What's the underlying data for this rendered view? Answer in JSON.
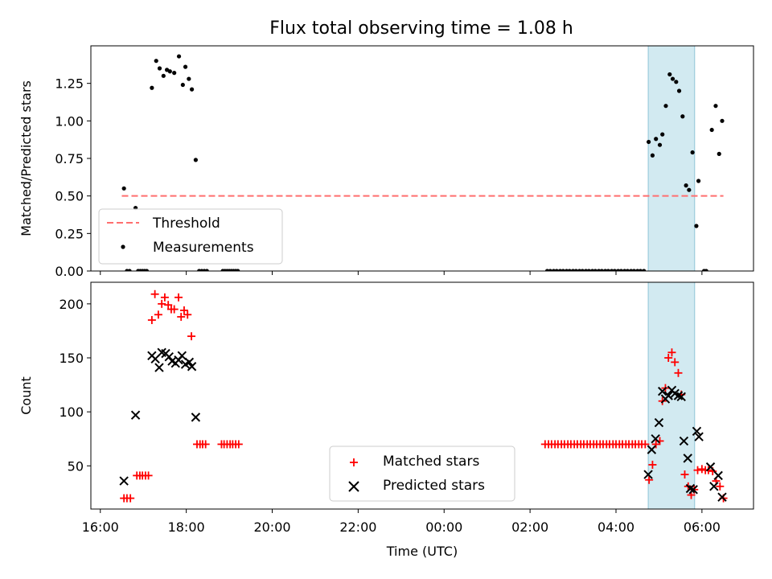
{
  "title": "Flux total observing time = 1.08 h",
  "colors": {
    "measure": "#000000",
    "threshold": "#ff6f6f",
    "matched": "#ff0000",
    "predicted": "#000000",
    "highlight": "#add8e6"
  },
  "chart_data": [
    {
      "type": "scatter",
      "ylabel": "Matched/Predicted stars",
      "ylim": [
        0,
        1.5
      ],
      "yticks": [
        "0.00",
        "0.25",
        "0.50",
        "0.75",
        "1.00",
        "1.25"
      ],
      "ytick_values": [
        0,
        0.25,
        0.5,
        0.75,
        1.0,
        1.25
      ],
      "xlim": [
        15.78,
        31.2
      ],
      "xtick_values": [
        16,
        18,
        20,
        22,
        24,
        26,
        28,
        30
      ],
      "highlight_span": [
        28.75,
        29.83
      ],
      "legend_position": "lower-left",
      "threshold": {
        "name": "Threshold",
        "y": 0.5,
        "x_range": [
          16.5,
          30.5
        ]
      },
      "series": [
        {
          "name": "Measurements",
          "points": [
            [
              16.55,
              0.55
            ],
            [
              16.82,
              0.42
            ],
            [
              17.2,
              1.22
            ],
            [
              17.3,
              1.4
            ],
            [
              17.38,
              1.35
            ],
            [
              17.47,
              1.3
            ],
            [
              17.55,
              1.34
            ],
            [
              17.62,
              1.33
            ],
            [
              17.72,
              1.32
            ],
            [
              17.83,
              1.43
            ],
            [
              17.92,
              1.24
            ],
            [
              17.98,
              1.36
            ],
            [
              18.06,
              1.28
            ],
            [
              18.13,
              1.21
            ],
            [
              18.22,
              0.74
            ],
            [
              16.62,
              0
            ],
            [
              16.68,
              0
            ],
            [
              16.88,
              0
            ],
            [
              16.93,
              0
            ],
            [
              16.98,
              0
            ],
            [
              17.03,
              0
            ],
            [
              17.08,
              0
            ],
            [
              18.3,
              0
            ],
            [
              18.36,
              0
            ],
            [
              18.42,
              0
            ],
            [
              18.48,
              0
            ],
            [
              18.85,
              0
            ],
            [
              18.9,
              0
            ],
            [
              18.95,
              0
            ],
            [
              19.0,
              0
            ],
            [
              19.05,
              0
            ],
            [
              19.1,
              0
            ],
            [
              19.15,
              0
            ],
            [
              19.2,
              0
            ],
            [
              28.76,
              0.86
            ],
            [
              28.85,
              0.77
            ],
            [
              28.93,
              0.88
            ],
            [
              29.02,
              0.84
            ],
            [
              29.08,
              0.91
            ],
            [
              29.16,
              1.1
            ],
            [
              29.25,
              1.31
            ],
            [
              29.32,
              1.28
            ],
            [
              29.4,
              1.26
            ],
            [
              29.47,
              1.2
            ],
            [
              29.55,
              1.03
            ],
            [
              29.63,
              0.57
            ],
            [
              29.7,
              0.54
            ],
            [
              29.78,
              0.79
            ],
            [
              29.87,
              0.3
            ],
            [
              29.92,
              0.6
            ],
            [
              30.05,
              0
            ],
            [
              30.1,
              0
            ],
            [
              30.23,
              0.94
            ],
            [
              30.32,
              1.1
            ],
            [
              30.4,
              0.78
            ],
            [
              30.47,
              1.0
            ],
            [
              26.4,
              0
            ],
            [
              26.47,
              0
            ],
            [
              26.55,
              0
            ],
            [
              26.62,
              0
            ],
            [
              26.7,
              0
            ],
            [
              26.77,
              0
            ],
            [
              26.85,
              0
            ],
            [
              26.92,
              0
            ],
            [
              27.0,
              0
            ],
            [
              27.07,
              0
            ],
            [
              27.15,
              0
            ],
            [
              27.22,
              0
            ],
            [
              27.3,
              0
            ],
            [
              27.37,
              0
            ],
            [
              27.45,
              0
            ],
            [
              27.52,
              0
            ],
            [
              27.6,
              0
            ],
            [
              27.67,
              0
            ],
            [
              27.75,
              0
            ],
            [
              27.82,
              0
            ],
            [
              27.9,
              0
            ],
            [
              27.97,
              0
            ],
            [
              28.05,
              0
            ],
            [
              28.12,
              0
            ],
            [
              28.2,
              0
            ],
            [
              28.27,
              0
            ],
            [
              28.35,
              0
            ],
            [
              28.42,
              0
            ],
            [
              28.5,
              0
            ],
            [
              28.57,
              0
            ],
            [
              28.65,
              0
            ]
          ]
        }
      ]
    },
    {
      "type": "scatter",
      "ylabel": "Count",
      "xlabel": "Time (UTC)",
      "ylim": [
        10,
        220
      ],
      "yticks": [
        "50",
        "100",
        "150",
        "200"
      ],
      "ytick_values": [
        50,
        100,
        150,
        200
      ],
      "xlim": [
        15.78,
        31.2
      ],
      "xticks": [
        "16:00",
        "18:00",
        "20:00",
        "22:00",
        "00:00",
        "02:00",
        "04:00",
        "06:00"
      ],
      "xtick_values": [
        16,
        18,
        20,
        22,
        24,
        26,
        28,
        30
      ],
      "highlight_span": [
        28.75,
        29.83
      ],
      "legend_position": "lower-center",
      "series": [
        {
          "name": "Matched stars",
          "marker": "+",
          "points": [
            [
              16.55,
              20
            ],
            [
              16.62,
              20
            ],
            [
              16.7,
              20
            ],
            [
              16.85,
              41
            ],
            [
              16.92,
              41
            ],
            [
              16.98,
              41
            ],
            [
              17.05,
              41
            ],
            [
              17.12,
              41
            ],
            [
              17.2,
              185
            ],
            [
              17.27,
              209
            ],
            [
              17.35,
              190
            ],
            [
              17.43,
              200
            ],
            [
              17.5,
              206
            ],
            [
              17.58,
              199
            ],
            [
              17.65,
              195
            ],
            [
              17.72,
              195
            ],
            [
              17.82,
              206
            ],
            [
              17.88,
              188
            ],
            [
              17.95,
              194
            ],
            [
              18.03,
              190
            ],
            [
              18.12,
              170
            ],
            [
              18.25,
              70
            ],
            [
              18.32,
              70
            ],
            [
              18.38,
              70
            ],
            [
              18.45,
              70
            ],
            [
              18.82,
              70
            ],
            [
              18.88,
              70
            ],
            [
              18.95,
              70
            ],
            [
              19.02,
              70
            ],
            [
              19.08,
              70
            ],
            [
              19.15,
              70
            ],
            [
              19.22,
              70
            ],
            [
              26.35,
              70
            ],
            [
              26.43,
              70
            ],
            [
              26.5,
              70
            ],
            [
              26.58,
              70
            ],
            [
              26.65,
              70
            ],
            [
              26.73,
              70
            ],
            [
              26.8,
              70
            ],
            [
              26.88,
              70
            ],
            [
              26.95,
              70
            ],
            [
              27.03,
              70
            ],
            [
              27.1,
              70
            ],
            [
              27.18,
              70
            ],
            [
              27.25,
              70
            ],
            [
              27.33,
              70
            ],
            [
              27.4,
              70
            ],
            [
              27.48,
              70
            ],
            [
              27.55,
              70
            ],
            [
              27.63,
              70
            ],
            [
              27.7,
              70
            ],
            [
              27.78,
              70
            ],
            [
              27.85,
              70
            ],
            [
              27.93,
              70
            ],
            [
              28.0,
              70
            ],
            [
              28.08,
              70
            ],
            [
              28.15,
              70
            ],
            [
              28.23,
              70
            ],
            [
              28.3,
              70
            ],
            [
              28.38,
              70
            ],
            [
              28.45,
              70
            ],
            [
              28.53,
              70
            ],
            [
              28.6,
              70
            ],
            [
              28.68,
              70
            ],
            [
              28.77,
              37
            ],
            [
              28.85,
              51
            ],
            [
              28.93,
              70
            ],
            [
              29.02,
              73
            ],
            [
              29.08,
              110
            ],
            [
              29.15,
              122
            ],
            [
              29.22,
              150
            ],
            [
              29.3,
              155
            ],
            [
              29.37,
              146
            ],
            [
              29.45,
              136
            ],
            [
              29.52,
              116
            ],
            [
              29.6,
              42
            ],
            [
              29.68,
              31
            ],
            [
              29.75,
              23
            ],
            [
              29.82,
              28
            ],
            [
              29.9,
              46
            ],
            [
              30.0,
              47
            ],
            [
              30.08,
              46
            ],
            [
              30.15,
              46
            ],
            [
              30.25,
              45
            ],
            [
              30.33,
              36
            ],
            [
              30.42,
              31
            ],
            [
              30.5,
              20
            ]
          ]
        },
        {
          "name": "Predicted stars",
          "marker": "x",
          "points": [
            [
              16.55,
              36
            ],
            [
              16.82,
              97
            ],
            [
              17.2,
              152
            ],
            [
              17.28,
              149
            ],
            [
              17.37,
              141
            ],
            [
              17.43,
              155
            ],
            [
              17.52,
              154
            ],
            [
              17.6,
              151
            ],
            [
              17.67,
              147
            ],
            [
              17.75,
              145
            ],
            [
              17.82,
              148
            ],
            [
              17.9,
              152
            ],
            [
              17.98,
              144
            ],
            [
              18.07,
              146
            ],
            [
              18.13,
              142
            ],
            [
              18.22,
              95
            ],
            [
              28.75,
              42
            ],
            [
              28.83,
              65
            ],
            [
              28.92,
              75
            ],
            [
              29.0,
              90
            ],
            [
              29.08,
              119
            ],
            [
              29.15,
              112
            ],
            [
              29.22,
              115
            ],
            [
              29.3,
              120
            ],
            [
              29.37,
              117
            ],
            [
              29.45,
              115
            ],
            [
              29.52,
              114
            ],
            [
              29.58,
              73
            ],
            [
              29.67,
              57
            ],
            [
              29.73,
              29
            ],
            [
              29.8,
              28
            ],
            [
              29.88,
              82
            ],
            [
              29.93,
              77
            ],
            [
              30.2,
              49
            ],
            [
              30.28,
              31
            ],
            [
              30.38,
              41
            ],
            [
              30.47,
              21
            ]
          ]
        }
      ]
    }
  ]
}
